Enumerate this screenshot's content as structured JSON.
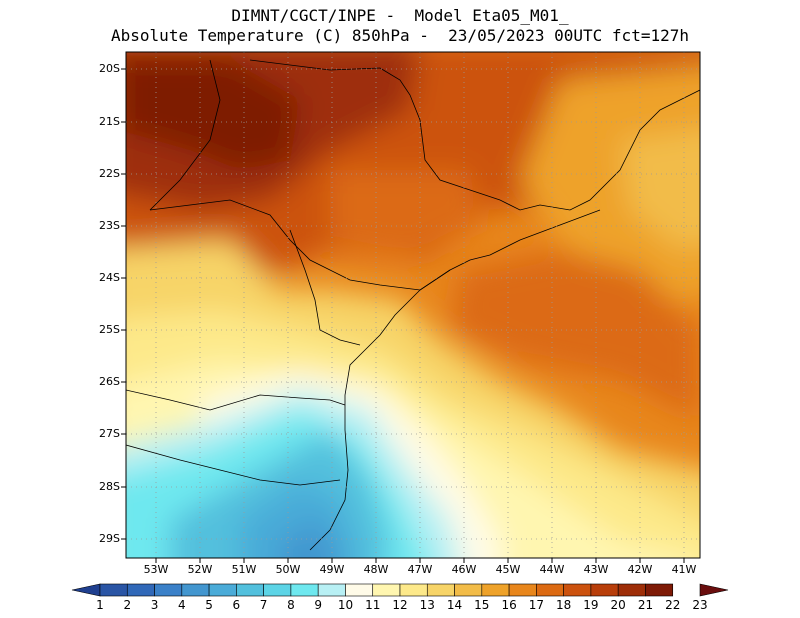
{
  "header": {
    "line1": "DIMNT/CGCT/INPE -  Model Eta05_M01_",
    "line2": "Absolute Temperature (C) 850hPa -  23/05/2023 00UTC fct=127h"
  },
  "map": {
    "lat_labels": [
      "20S",
      "21S",
      "22S",
      "23S",
      "24S",
      "25S",
      "26S",
      "27S",
      "28S",
      "29S"
    ],
    "lon_labels": [
      "53W",
      "52W",
      "51W",
      "50W",
      "49W",
      "48W",
      "47W",
      "46W",
      "45W",
      "44W",
      "43W",
      "42W",
      "41W"
    ],
    "region": "South/Southeast Brazil"
  },
  "colorbar": {
    "labels": [
      "1",
      "2",
      "3",
      "4",
      "5",
      "6",
      "7",
      "8",
      "9",
      "10",
      "11",
      "12",
      "13",
      "14",
      "15",
      "16",
      "17",
      "18",
      "19",
      "20",
      "21",
      "22",
      "23"
    ],
    "colors": [
      "#1f3f8f",
      "#2a55a5",
      "#3068b8",
      "#3a80c8",
      "#4396cf",
      "#4aabd8",
      "#52c0dd",
      "#5cd4e6",
      "#6ee8ef",
      "#b8f0f4",
      "#fffbe8",
      "#fff6b0",
      "#fde98a",
      "#f7d468",
      "#f2bc48",
      "#eea22a",
      "#e8861c",
      "#dc6a12",
      "#cc520e",
      "#b83e0a",
      "#9e2e08",
      "#7e1a06",
      "#6a0e0e"
    ]
  }
}
